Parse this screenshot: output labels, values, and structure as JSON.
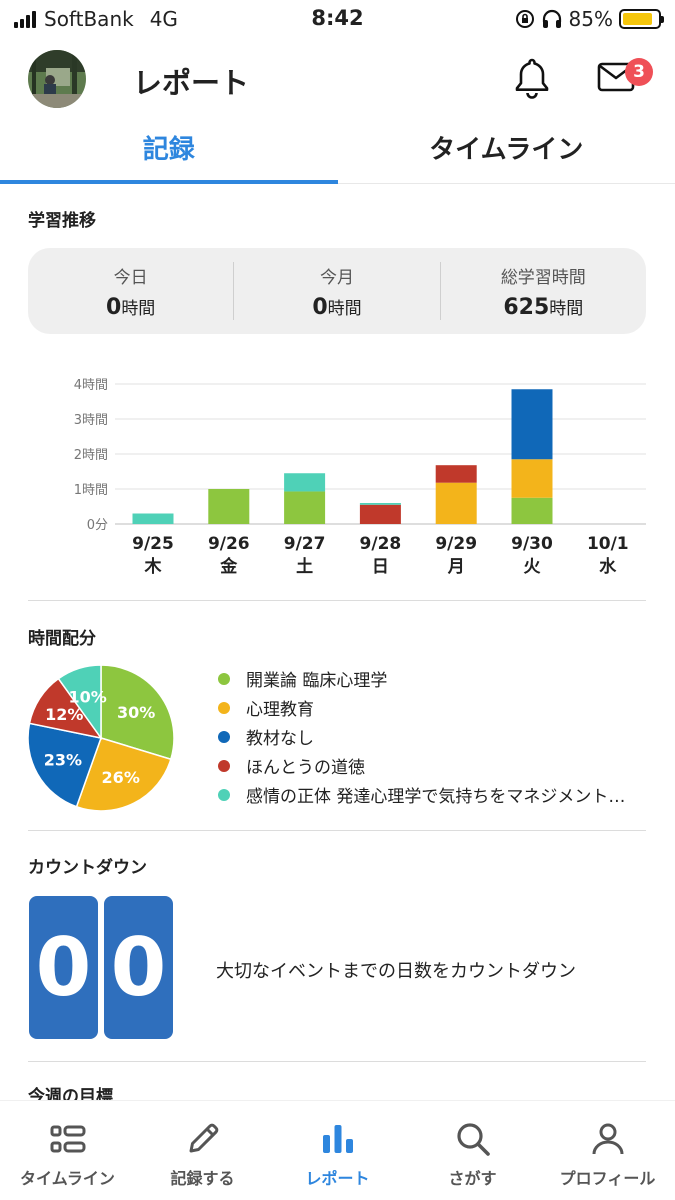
{
  "status": {
    "carrier": "SoftBank",
    "network": "4G",
    "time": "8:42",
    "battery_text": "85%",
    "battery_level": 0.85
  },
  "header": {
    "title": "レポート",
    "mail_badge": "3"
  },
  "tabs": [
    {
      "label": "記録",
      "active": true
    },
    {
      "label": "タイムライン",
      "active": false
    }
  ],
  "study": {
    "section_title": "学習推移",
    "summary": [
      {
        "label": "今日",
        "value": "0",
        "unit": "時間"
      },
      {
        "label": "今月",
        "value": "0",
        "unit": "時間"
      },
      {
        "label": "総学習時間",
        "value": "625",
        "unit": "時間"
      }
    ]
  },
  "chart_data": [
    {
      "type": "bar",
      "stacked": true,
      "categories": [
        "9/25",
        "9/26",
        "9/27",
        "9/28",
        "9/29",
        "9/30",
        "10/1"
      ],
      "weekdays": [
        "木",
        "金",
        "土",
        "日",
        "月",
        "火",
        "水"
      ],
      "y_tick_labels": [
        "0分",
        "1時間",
        "2時間",
        "3時間",
        "4時間"
      ],
      "ylim": [
        0,
        4
      ],
      "grid": true,
      "series": [
        {
          "name": "開業論 臨床心理学",
          "color": "#8dc63f",
          "values": [
            0,
            1.0,
            0.93,
            0,
            0,
            0.75,
            0
          ]
        },
        {
          "name": "心理教育",
          "color": "#f3b41b",
          "values": [
            0,
            0,
            0,
            0,
            1.18,
            1.1,
            0
          ]
        },
        {
          "name": "教材なし",
          "color": "#1068b8",
          "values": [
            0,
            0,
            0,
            0,
            0,
            2.0,
            0
          ]
        },
        {
          "name": "ほんとうの道徳",
          "color": "#c0392b",
          "values": [
            0,
            0,
            0,
            0.55,
            0.5,
            0,
            0
          ]
        },
        {
          "name": "感情の正体 発達心理学で気持ちをマネジメント…",
          "color": "#4fd1b7",
          "values": [
            0.3,
            0,
            0.52,
            0.05,
            0,
            0,
            0
          ]
        }
      ]
    },
    {
      "type": "pie",
      "slices": [
        {
          "label": "開業論 臨床心理学",
          "value": 30,
          "text": "30%",
          "color": "#8dc63f"
        },
        {
          "label": "心理教育",
          "value": 26,
          "text": "26%",
          "color": "#f3b41b"
        },
        {
          "label": "教材なし",
          "value": 23,
          "text": "23%",
          "color": "#1068b8"
        },
        {
          "label": "ほんとうの道徳",
          "value": 12,
          "text": "12%",
          "color": "#c0392b"
        },
        {
          "label": "感情の正体 発達心理学で気持ちをマネジメント…",
          "value": 10,
          "text": "10%",
          "color": "#4fd1b7"
        }
      ]
    }
  ],
  "distribution": {
    "section_title": "時間配分"
  },
  "countdown": {
    "section_title": "カウントダウン",
    "digits": [
      "0",
      "0"
    ],
    "text": "大切なイベントまでの日数をカウントダウン"
  },
  "weekly_goal": {
    "section_title": "今週の目標"
  },
  "bottom_nav": [
    {
      "label": "タイムライン",
      "icon": "timeline-icon",
      "active": false
    },
    {
      "label": "記録する",
      "icon": "pencil-icon",
      "active": false
    },
    {
      "label": "レポート",
      "icon": "bar-chart-icon",
      "active": true
    },
    {
      "label": "さがす",
      "icon": "search-icon",
      "active": false
    },
    {
      "label": "プロフィール",
      "icon": "person-icon",
      "active": false
    }
  ],
  "colors": {
    "accent": "#2e86de",
    "countdown": "#2f6fbd",
    "badge": "#ef5057"
  }
}
